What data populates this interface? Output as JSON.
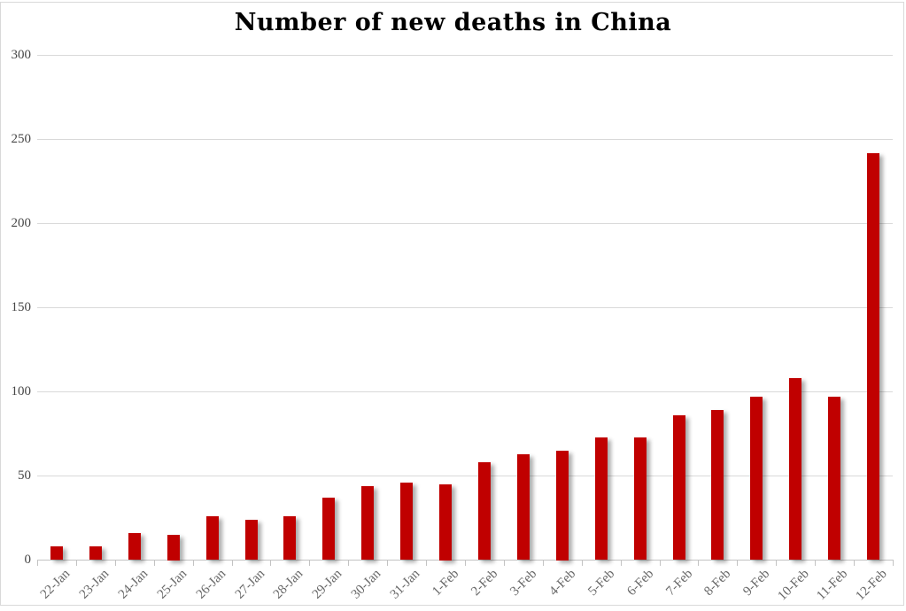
{
  "title": "Number of new deaths in China",
  "colors": {
    "bar": "#c00000",
    "gridline": "#d9d9d9",
    "axis": "#c3c3c3",
    "y_label": "#474747",
    "x_label": "#666666",
    "title": "#000000",
    "frame_border": "#d9d9d9",
    "background": "#ffffff"
  },
  "chart_data": {
    "type": "bar",
    "title": "Number of new deaths in China",
    "categories": [
      "22-Jan",
      "23-Jan",
      "24-Jan",
      "25-Jan",
      "26-Jan",
      "27-Jan",
      "28-Jan",
      "29-Jan",
      "30-Jan",
      "31-Jan",
      "1-Feb",
      "2-Feb",
      "3-Feb",
      "4-Feb",
      "5-Feb",
      "6-Feb",
      "7-Feb",
      "8-Feb",
      "9-Feb",
      "10-Feb",
      "11-Feb",
      "12-Feb"
    ],
    "values": [
      8,
      8,
      16,
      15,
      26,
      24,
      26,
      37,
      44,
      46,
      45,
      58,
      63,
      65,
      73,
      73,
      86,
      89,
      97,
      108,
      97,
      242
    ],
    "xlabel": "",
    "ylabel": "",
    "ylim": [
      0,
      300
    ],
    "yticks": [
      0,
      50,
      100,
      150,
      200,
      250,
      300
    ],
    "grid": true,
    "legend": false,
    "x_tick_rotation_deg": 45
  }
}
